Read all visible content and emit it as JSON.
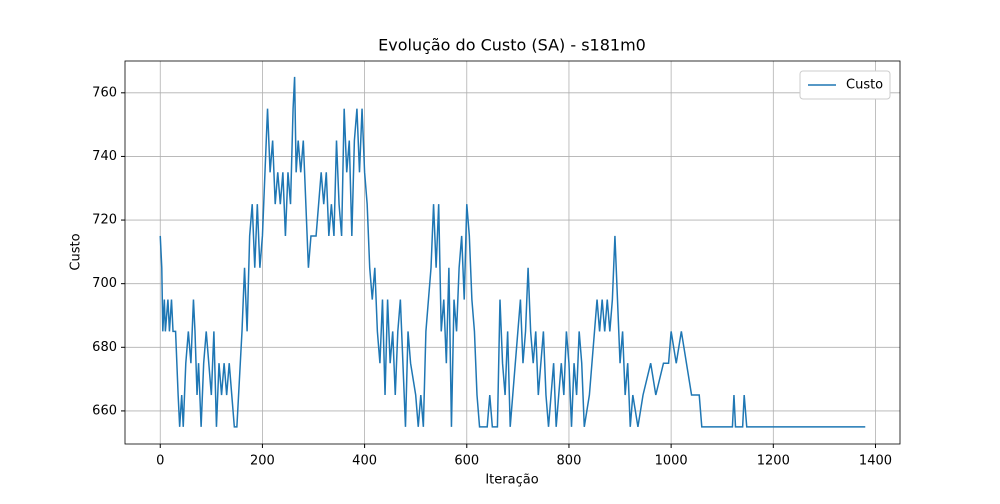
{
  "chart_data": {
    "type": "line",
    "title": "Evolução do Custo (SA) - s181m0",
    "xlabel": "Iteração",
    "ylabel": "Custo",
    "xlim": [
      -69,
      1448
    ],
    "ylim": [
      649.6,
      770
    ],
    "xticks": [
      0,
      200,
      400,
      600,
      800,
      1000,
      1200,
      1400
    ],
    "yticks": [
      660,
      680,
      700,
      720,
      740,
      760
    ],
    "grid": true,
    "legend": "upper right",
    "x": [
      0,
      3,
      5,
      8,
      10,
      15,
      18,
      22,
      25,
      30,
      35,
      38,
      42,
      45,
      50,
      55,
      60,
      65,
      68,
      72,
      75,
      80,
      85,
      90,
      95,
      100,
      105,
      110,
      115,
      120,
      125,
      130,
      135,
      140,
      145,
      150,
      160,
      165,
      170,
      175,
      180,
      185,
      190,
      195,
      200,
      205,
      210,
      215,
      220,
      225,
      230,
      235,
      240,
      245,
      250,
      255,
      260,
      263,
      266,
      270,
      275,
      280,
      285,
      290,
      295,
      305,
      315,
      320,
      325,
      330,
      335,
      340,
      345,
      350,
      355,
      360,
      365,
      370,
      375,
      380,
      385,
      390,
      395,
      400,
      405,
      410,
      415,
      420,
      425,
      430,
      435,
      440,
      445,
      450,
      455,
      460,
      465,
      470,
      475,
      480,
      485,
      490,
      500,
      505,
      510,
      515,
      520,
      525,
      530,
      535,
      540,
      545,
      550,
      555,
      560,
      565,
      570,
      575,
      580,
      585,
      590,
      595,
      600,
      605,
      610,
      615,
      620,
      625,
      640,
      645,
      650,
      660,
      665,
      670,
      675,
      680,
      685,
      690,
      695,
      700,
      705,
      710,
      715,
      720,
      725,
      730,
      735,
      740,
      745,
      750,
      755,
      760,
      765,
      770,
      775,
      780,
      785,
      790,
      795,
      800,
      805,
      810,
      815,
      820,
      825,
      830,
      840,
      845,
      850,
      855,
      860,
      865,
      870,
      875,
      880,
      885,
      890,
      895,
      900,
      905,
      910,
      915,
      920,
      925,
      935,
      945,
      960,
      970,
      985,
      995,
      1000,
      1010,
      1020,
      1030,
      1040,
      1055,
      1060,
      1120,
      1123,
      1126,
      1140,
      1143,
      1148,
      1380
    ],
    "series": [
      {
        "name": "Custo",
        "color": "#1f77b4",
        "values": [
          715,
          705,
          685,
          695,
          685,
          695,
          685,
          695,
          685,
          685,
          665,
          655,
          665,
          655,
          675,
          685,
          675,
          695,
          685,
          665,
          675,
          655,
          675,
          685,
          675,
          665,
          685,
          655,
          675,
          665,
          675,
          665,
          675,
          665,
          655,
          655,
          685,
          705,
          685,
          715,
          725,
          705,
          725,
          705,
          715,
          735,
          755,
          735,
          745,
          725,
          735,
          725,
          735,
          715,
          735,
          725,
          755,
          765,
          735,
          745,
          735,
          745,
          725,
          705,
          715,
          715,
          735,
          725,
          735,
          715,
          725,
          715,
          745,
          725,
          715,
          755,
          735,
          745,
          715,
          745,
          755,
          735,
          755,
          735,
          725,
          705,
          695,
          705,
          685,
          675,
          695,
          665,
          695,
          675,
          685,
          665,
          685,
          695,
          675,
          655,
          685,
          675,
          665,
          655,
          665,
          655,
          685,
          695,
          705,
          725,
          705,
          725,
          685,
          695,
          675,
          705,
          655,
          695,
          685,
          705,
          715,
          695,
          725,
          715,
          695,
          685,
          665,
          655,
          655,
          665,
          655,
          655,
          695,
          675,
          665,
          685,
          655,
          665,
          675,
          685,
          695,
          675,
          685,
          705,
          685,
          675,
          685,
          665,
          675,
          685,
          665,
          655,
          665,
          675,
          655,
          665,
          675,
          665,
          685,
          675,
          655,
          675,
          665,
          685,
          675,
          655,
          665,
          675,
          685,
          695,
          685,
          695,
          685,
          695,
          685,
          695,
          715,
          695,
          675,
          685,
          665,
          675,
          655,
          665,
          655,
          665,
          675,
          665,
          675,
          675,
          685,
          675,
          685,
          675,
          665,
          665,
          655,
          655,
          665,
          655,
          655,
          665,
          655,
          655
        ]
      }
    ]
  }
}
